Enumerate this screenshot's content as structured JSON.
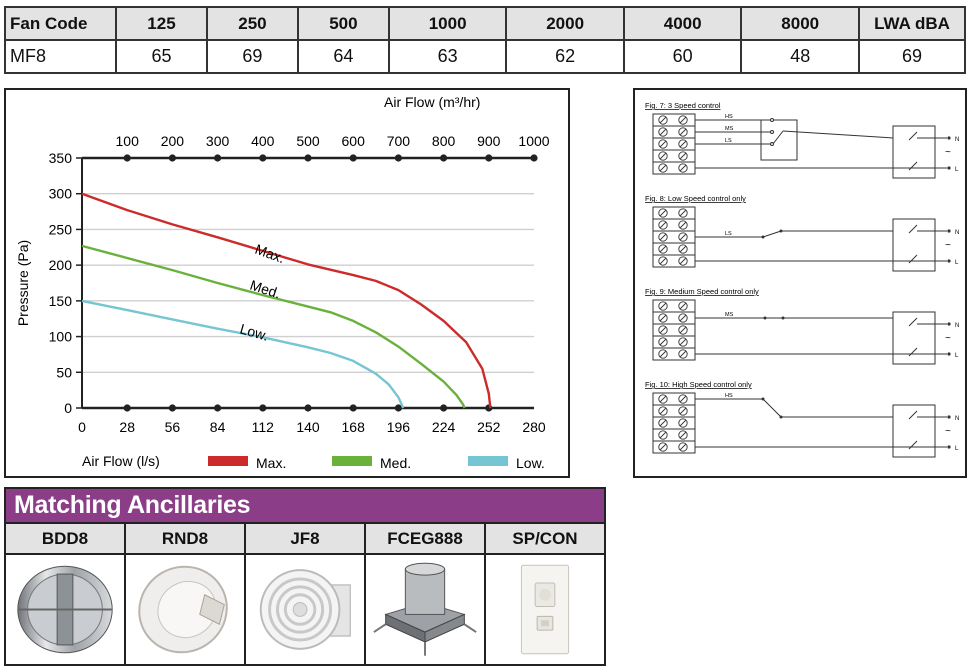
{
  "sound_table": {
    "header": [
      "Fan Code",
      "125",
      "250",
      "500",
      "1000",
      "2000",
      "4000",
      "8000",
      "LWA dBA"
    ],
    "row": [
      "MF8",
      "65",
      "69",
      "64",
      "63",
      "62",
      "60",
      "48",
      "69"
    ]
  },
  "chart_data": {
    "type": "line",
    "x2label": "Air Flow (m³/hr)",
    "x2_ticks": [
      "100",
      "200",
      "300",
      "400",
      "500",
      "600",
      "700",
      "800",
      "900",
      "1000"
    ],
    "xlabel": "Air Flow (l/s)",
    "x_ticks": [
      "0",
      "28",
      "56",
      "84",
      "112",
      "140",
      "168",
      "196",
      "224",
      "252",
      "280"
    ],
    "ylabel": "Pressure (Pa)",
    "y_ticks": [
      "0",
      "50",
      "100",
      "150",
      "200",
      "250",
      "300",
      "350"
    ],
    "xlim": [
      0,
      280
    ],
    "ylim": [
      0,
      350
    ],
    "grid": true,
    "legend_position": "bottom",
    "series": [
      {
        "name": "Max.",
        "curve_label": "Max.",
        "color": "#cc2b2b",
        "x": [
          0,
          28,
          56,
          84,
          112,
          140,
          168,
          182,
          196,
          210,
          224,
          238,
          248,
          252,
          253
        ],
        "y": [
          300,
          277,
          257,
          239,
          220,
          201,
          186,
          178,
          165,
          145,
          122,
          92,
          55,
          20,
          0
        ]
      },
      {
        "name": "Med.",
        "curve_label": "Med.",
        "color": "#6ab13c",
        "x": [
          0,
          28,
          56,
          84,
          112,
          140,
          154,
          168,
          182,
          196,
          210,
          224,
          232,
          236,
          237
        ],
        "y": [
          227,
          210,
          193,
          175,
          158,
          142,
          134,
          122,
          106,
          86,
          62,
          37,
          18,
          5,
          0
        ]
      },
      {
        "name": "Low.",
        "curve_label": "Low.",
        "color": "#76c5d2",
        "x": [
          0,
          28,
          56,
          84,
          112,
          140,
          154,
          168,
          182,
          190,
          196,
          199
        ],
        "y": [
          150,
          137,
          124,
          111,
          99,
          85,
          77,
          66,
          48,
          33,
          15,
          0
        ]
      }
    ]
  },
  "wiring": {
    "figures": [
      {
        "title": "Fig. 7: 3 Speed control",
        "labels": [
          "HS",
          "MS",
          "LS"
        ]
      },
      {
        "title": "Fig. 8: Low Speed control only",
        "labels": [
          "LS"
        ]
      },
      {
        "title": "Fig. 9: Medium Speed control only",
        "labels": [
          "MS"
        ]
      },
      {
        "title": "Fig. 10: High Speed control only",
        "labels": [
          "HS"
        ]
      }
    ],
    "terminal_labels": [
      "N",
      "L"
    ],
    "ac_symbol": "~"
  },
  "ancillaries": {
    "title": "Matching Ancillaries",
    "items": [
      {
        "code": "BDD8",
        "icon": "backdraft-damper-icon"
      },
      {
        "code": "RND8",
        "icon": "round-grille-icon"
      },
      {
        "code": "JF8",
        "icon": "jet-diffuser-icon"
      },
      {
        "code": "FCEG888",
        "icon": "ceiling-box-icon"
      },
      {
        "code": "SP/CON",
        "icon": "speed-controller-icon"
      }
    ]
  }
}
